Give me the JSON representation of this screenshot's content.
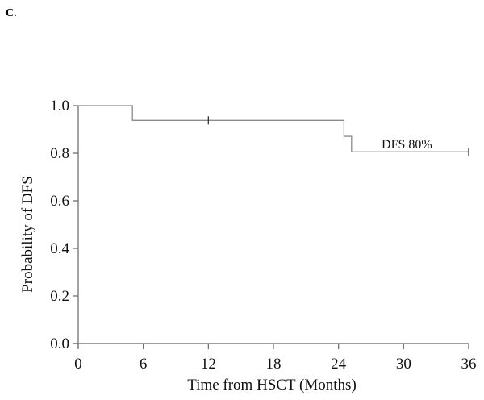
{
  "panel_label": "C.",
  "chart_data": {
    "type": "line",
    "title": "",
    "xlabel": "Time from HSCT (Months)",
    "ylabel": "Probability of DFS",
    "xlim": [
      0,
      36
    ],
    "ylim": [
      0,
      1.0
    ],
    "x_ticks": [
      0,
      6,
      12,
      18,
      24,
      30,
      36
    ],
    "x_tick_labels": [
      "0",
      "6",
      "12",
      "18",
      "24",
      "30",
      "36"
    ],
    "y_ticks": [
      0,
      0.2,
      0.4,
      0.6,
      0.8,
      1.0
    ],
    "y_tick_labels": [
      "0.0",
      "0.2",
      "0.4",
      "0.6",
      "0.8",
      "1.0"
    ],
    "grid": false,
    "line_color": "#8a8a8a",
    "series": [
      {
        "step": true,
        "x": [
          0,
          5,
          24.5,
          25.2,
          36
        ],
        "y": [
          1.0,
          0.938,
          0.871,
          0.806,
          0.806
        ]
      }
    ],
    "censor_marks": [
      {
        "x": 12,
        "y": 0.938
      },
      {
        "x": 36,
        "y": 0.806
      }
    ],
    "annotations": [
      {
        "text": "DFS 80%",
        "x": 30.3,
        "y": 0.84
      }
    ]
  }
}
